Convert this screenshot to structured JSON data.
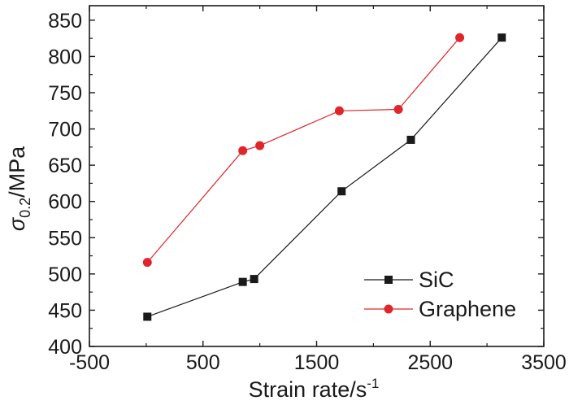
{
  "chart_data": {
    "type": "line",
    "title": "",
    "xlabel": "Strain rate/s",
    "xlabel_superscript": "-1",
    "ylabel_symbol": "σ",
    "ylabel_subscript": "0.2",
    "ylabel_unit": "/MPa",
    "xlim": [
      -500,
      3500
    ],
    "ylim": [
      400,
      870
    ],
    "x_ticks": [
      -500,
      500,
      1500,
      2500,
      3500
    ],
    "x_tick_labels": [
      "-500",
      "500",
      "1500",
      "2500",
      "3500"
    ],
    "y_ticks": [
      400,
      450,
      500,
      550,
      600,
      650,
      700,
      750,
      800,
      850
    ],
    "y_tick_labels": [
      "400",
      "450",
      "500",
      "550",
      "600",
      "650",
      "700",
      "750",
      "800",
      "850"
    ],
    "grid": false,
    "legend_position": "bottom-right",
    "series": [
      {
        "name": "SiC",
        "marker": "square",
        "color": "#1a1a1a",
        "x": [
          10,
          850,
          950,
          1720,
          2330,
          3130
        ],
        "y": [
          441,
          489,
          493,
          614,
          685,
          826
        ]
      },
      {
        "name": "Graphene",
        "marker": "circle",
        "color": "#e0262a",
        "x": [
          10,
          850,
          1000,
          1700,
          2220,
          2760
        ],
        "y": [
          516,
          670,
          677,
          725,
          727,
          826
        ]
      }
    ]
  }
}
